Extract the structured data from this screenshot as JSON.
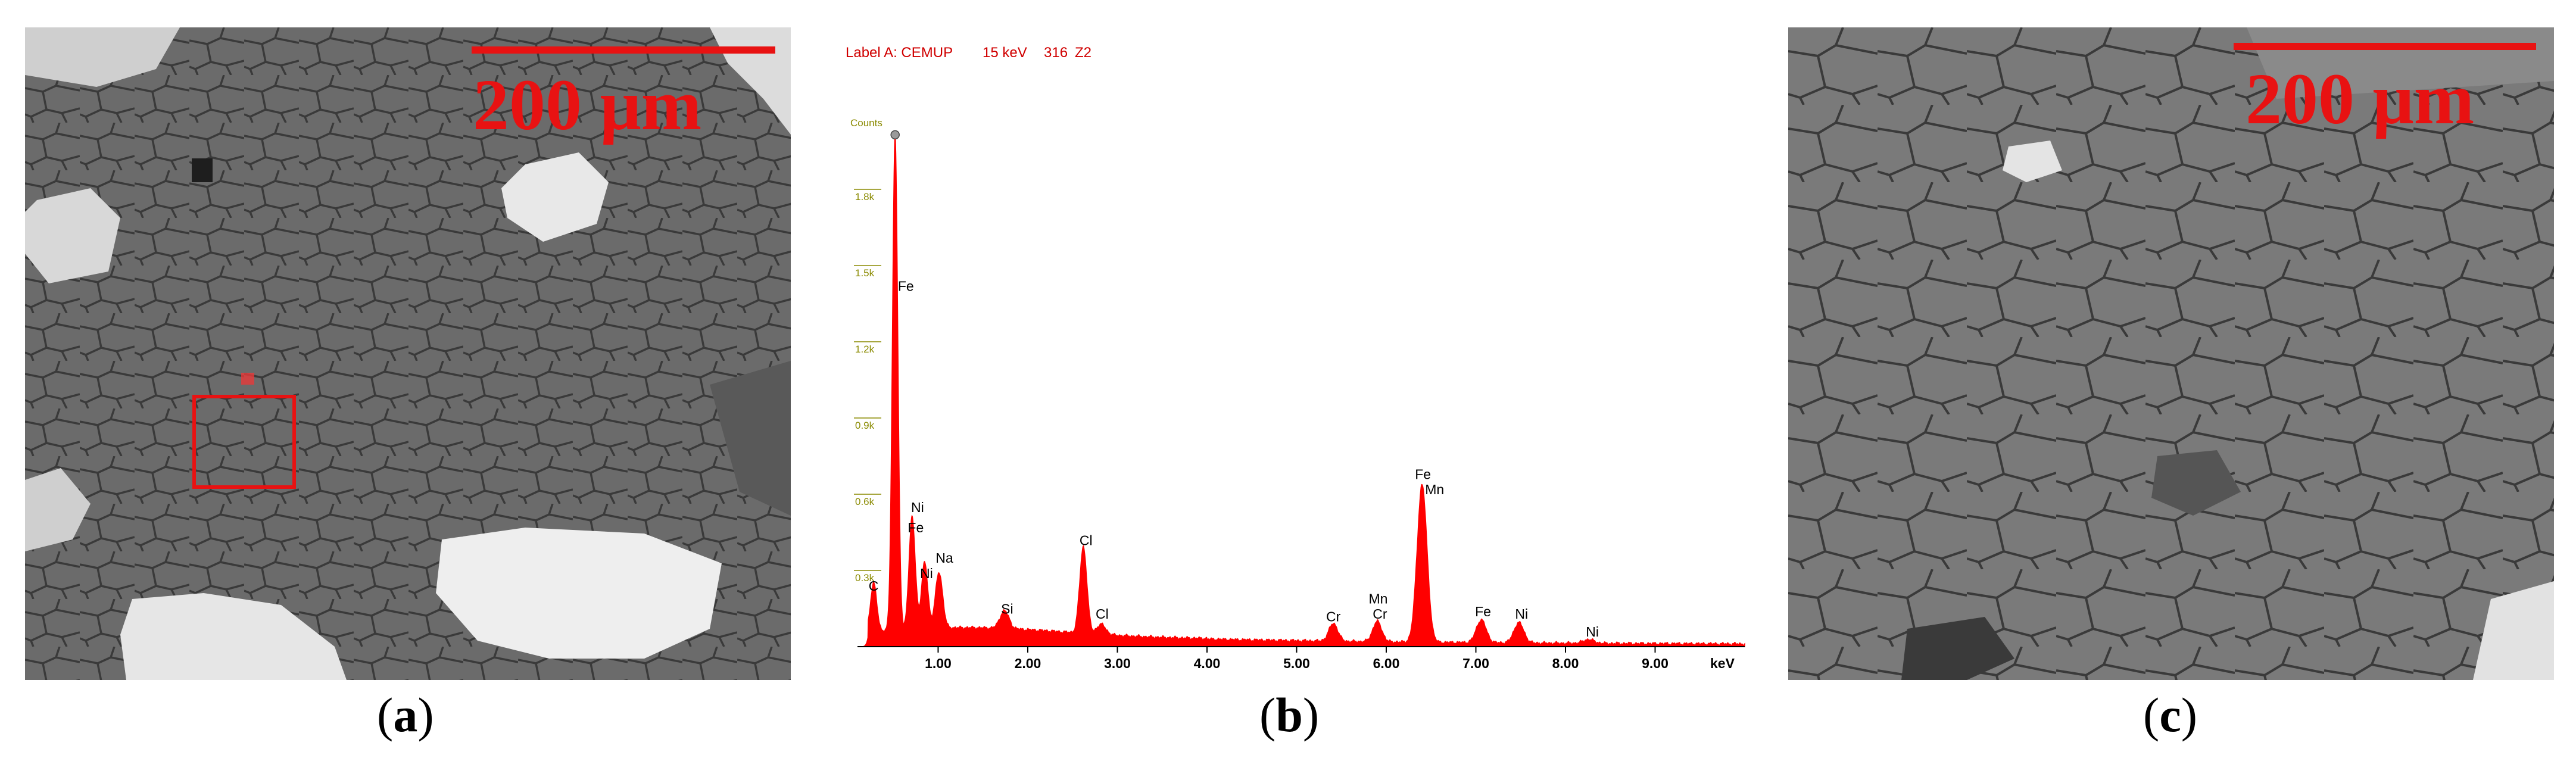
{
  "panels": {
    "a": {
      "caption_open": "(",
      "caption_letter": "a",
      "caption_close": ")",
      "scalebar_label": "200 μm",
      "selection_box_color": "#e81212"
    },
    "b": {
      "caption_open": "(",
      "caption_letter": "b",
      "caption_close": ")"
    },
    "c": {
      "caption_open": "(",
      "caption_letter": "c",
      "caption_close": ")",
      "scalebar_label": "200 μm"
    }
  },
  "colors": {
    "scalebar": "#e81212",
    "spectrum_fill": "#ff0000",
    "header_text": "#d00000",
    "y_tick_text": "#8a8a00"
  },
  "chart_data": {
    "type": "area",
    "header": {
      "label": "Label A: CEMUP",
      "energy": "15 keV",
      "count_label": "316",
      "tag": "Z2"
    },
    "ylabel": "Counts",
    "xlabel": "keV",
    "xlim": [
      0.1,
      10.0
    ],
    "ylim": [
      0,
      2.1
    ],
    "y_ticks": [
      {
        "value": 0.3,
        "label": "0.3k"
      },
      {
        "value": 0.6,
        "label": "0.6k"
      },
      {
        "value": 0.9,
        "label": "0.9k"
      },
      {
        "value": 1.2,
        "label": "1.2k"
      },
      {
        "value": 1.5,
        "label": "1.5k"
      },
      {
        "value": 1.8,
        "label": "1.8k"
      }
    ],
    "x_ticks": [
      {
        "value": 1,
        "label": "1.00"
      },
      {
        "value": 2,
        "label": "2.00"
      },
      {
        "value": 3,
        "label": "3.00"
      },
      {
        "value": 4,
        "label": "4.00"
      },
      {
        "value": 5,
        "label": "5.00"
      },
      {
        "value": 6,
        "label": "6.00"
      },
      {
        "value": 7,
        "label": "7.00"
      },
      {
        "value": 8,
        "label": "8.00"
      },
      {
        "value": 9,
        "label": "9.00"
      }
    ],
    "peaks": [
      {
        "energy": 0.28,
        "height": 0.19,
        "width": 0.035
      },
      {
        "energy": 0.52,
        "height": 1.95,
        "width": 0.03
      },
      {
        "energy": 0.71,
        "height": 0.44,
        "width": 0.035
      },
      {
        "energy": 0.85,
        "height": 0.26,
        "width": 0.035
      },
      {
        "energy": 1.01,
        "height": 0.22,
        "width": 0.04
      },
      {
        "energy": 1.74,
        "height": 0.07,
        "width": 0.05
      },
      {
        "energy": 2.62,
        "height": 0.34,
        "width": 0.04
      },
      {
        "energy": 2.82,
        "height": 0.04,
        "width": 0.05
      },
      {
        "energy": 5.41,
        "height": 0.07,
        "width": 0.05
      },
      {
        "energy": 5.9,
        "height": 0.08,
        "width": 0.05
      },
      {
        "energy": 6.4,
        "height": 0.62,
        "width": 0.055
      },
      {
        "energy": 7.06,
        "height": 0.09,
        "width": 0.055
      },
      {
        "energy": 7.48,
        "height": 0.08,
        "width": 0.055
      },
      {
        "energy": 8.26,
        "height": 0.015,
        "width": 0.06
      }
    ],
    "peak_labels": [
      {
        "text": "C",
        "energy": 0.28,
        "level": 0.22
      },
      {
        "text": "Fe",
        "energy": 0.64,
        "level": 1.4
      },
      {
        "text": "Ni",
        "energy": 0.77,
        "level": 0.53
      },
      {
        "text": "Fe",
        "energy": 0.75,
        "level": 0.45
      },
      {
        "text": "Na",
        "energy": 1.07,
        "level": 0.33
      },
      {
        "text": "Ni",
        "energy": 0.87,
        "level": 0.27
      },
      {
        "text": "Si",
        "energy": 1.77,
        "level": 0.13
      },
      {
        "text": "Cl",
        "energy": 2.65,
        "level": 0.4
      },
      {
        "text": "Cl",
        "energy": 2.83,
        "level": 0.11
      },
      {
        "text": "Cr",
        "energy": 5.41,
        "level": 0.1
      },
      {
        "text": "Mn",
        "energy": 5.91,
        "level": 0.17
      },
      {
        "text": "Cr",
        "energy": 5.93,
        "level": 0.11
      },
      {
        "text": "Fe",
        "energy": 6.41,
        "level": 0.66
      },
      {
        "text": "Mn",
        "energy": 6.54,
        "level": 0.6
      },
      {
        "text": "Fe",
        "energy": 7.08,
        "level": 0.12
      },
      {
        "text": "Ni",
        "energy": 7.51,
        "level": 0.11
      },
      {
        "text": "Ni",
        "energy": 8.3,
        "level": 0.04
      }
    ]
  }
}
